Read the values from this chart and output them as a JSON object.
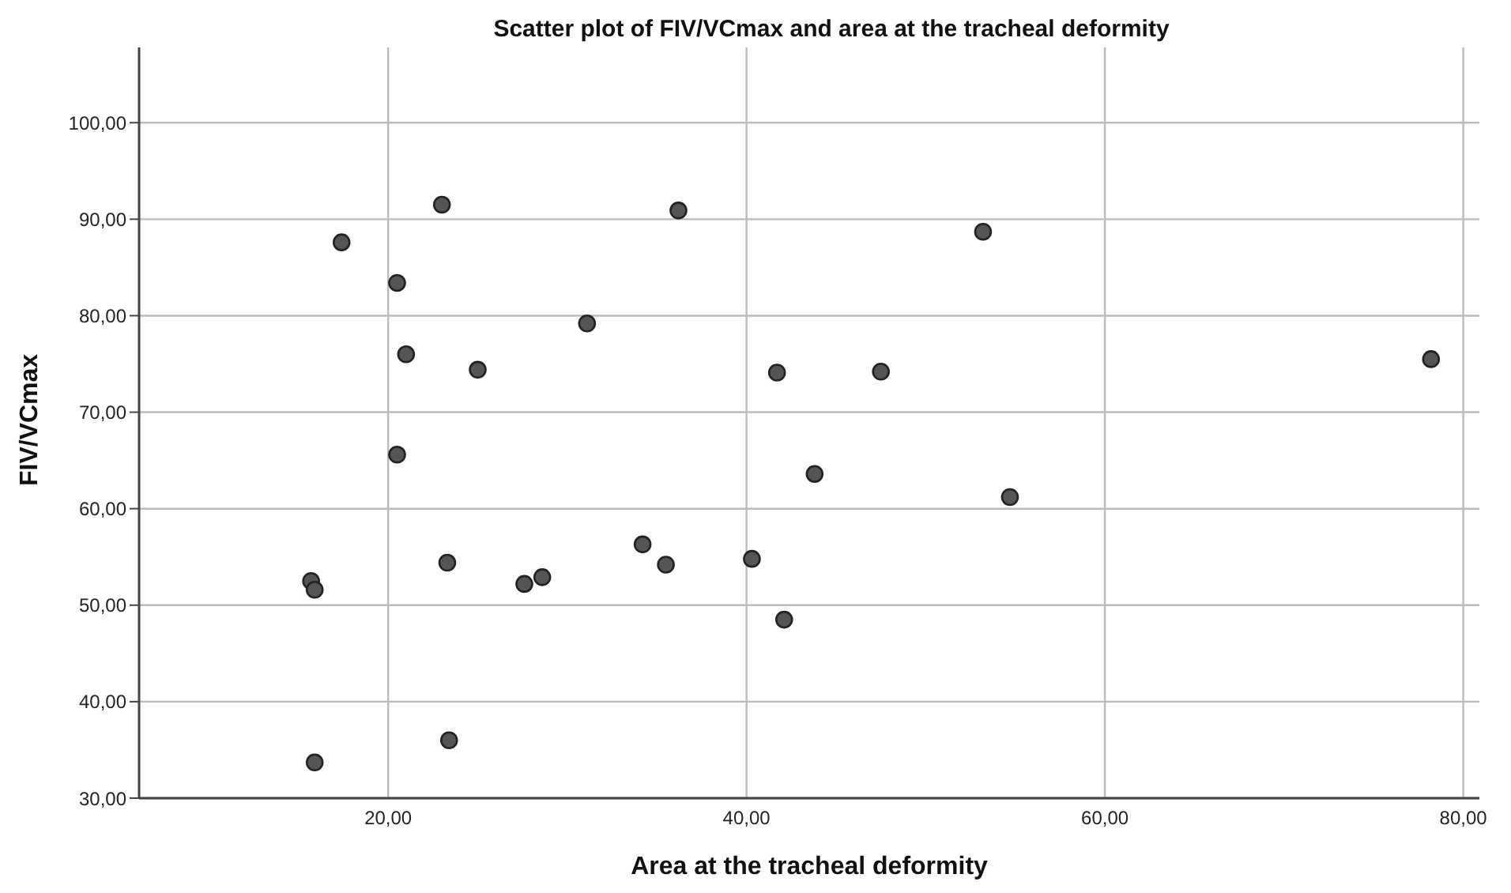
{
  "chart_data": {
    "type": "scatter",
    "title": "Scatter plot of FIV/VCmax and area at the tracheal deformity",
    "xlabel": "Area at the tracheal deformity",
    "ylabel": "FIV/VCmax",
    "x": [
      15.9,
      15.7,
      15.9,
      20.5,
      23.3,
      23.4,
      27.6,
      28.6,
      34.2,
      35.5,
      40.3,
      42.1,
      43.8,
      54.7,
      23.0,
      36.2,
      17.4,
      20.5,
      31.1,
      21.0,
      25.0,
      41.7,
      53.2,
      47.5,
      78.2
    ],
    "values": [
      33.7,
      52.5,
      51.6,
      65.6,
      54.4,
      36.0,
      52.2,
      52.9,
      56.3,
      54.2,
      54.8,
      48.5,
      63.6,
      61.2,
      91.5,
      90.9,
      87.6,
      83.4,
      79.2,
      76.0,
      74.4,
      74.1,
      88.7,
      74.2,
      75.5
    ],
    "color": "#555555",
    "marker": "circle",
    "grid": true,
    "xlim": [
      6.1,
      80.9
    ],
    "xticks": [
      {
        "value": 20,
        "label": "20,00"
      },
      {
        "value": 40,
        "label": "40,00"
      },
      {
        "value": 60,
        "label": "60,00"
      },
      {
        "value": 80,
        "label": "80,00"
      }
    ],
    "ylim": [
      30,
      107.8
    ],
    "yticks": [
      {
        "value": 30,
        "label": "30,00"
      },
      {
        "value": 40,
        "label": "40,00"
      },
      {
        "value": 50,
        "label": "50,00"
      },
      {
        "value": 60,
        "label": "60,00"
      },
      {
        "value": 70,
        "label": "70,00"
      },
      {
        "value": 80,
        "label": "80,00"
      },
      {
        "value": 90,
        "label": "90,00"
      },
      {
        "value": 100,
        "label": "100,00"
      }
    ]
  }
}
